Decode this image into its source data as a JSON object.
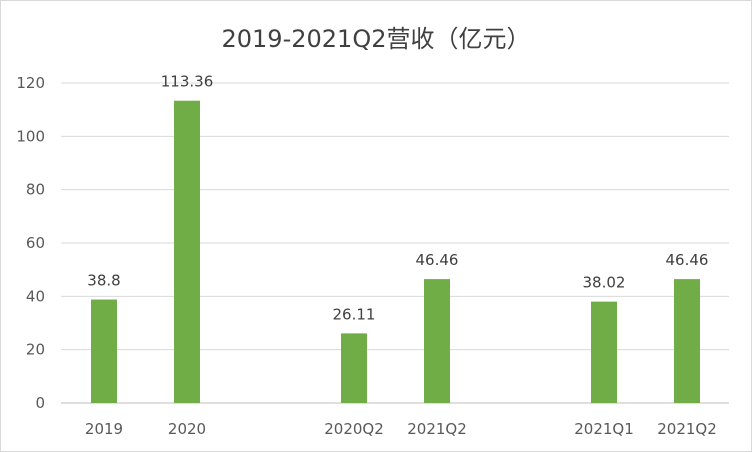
{
  "chart_data": {
    "type": "bar",
    "title": "2019-2021Q2营收（亿元）",
    "xlabel": "",
    "ylabel": "",
    "ylim": [
      0,
      120
    ],
    "yticks": [
      "0",
      "20",
      "40",
      "60",
      "80",
      "100",
      "120"
    ],
    "grid": true,
    "legend": "none",
    "bar_color": "#70ad47",
    "categories": [
      "2019",
      "2020",
      "2020Q2",
      "2021Q2",
      "2021Q1",
      "2021Q2"
    ],
    "values": [
      38.8,
      113.36,
      26.11,
      46.46,
      38.02,
      46.46
    ],
    "data_labels": [
      "38.8",
      "113.36",
      "26.11",
      "46.46",
      "38.02",
      "46.46"
    ]
  }
}
